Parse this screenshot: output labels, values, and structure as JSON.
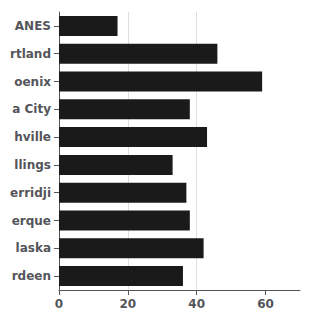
{
  "chart_data": {
    "type": "bar",
    "orientation": "horizontal",
    "categories": [
      "ANES",
      "rtland",
      "oenix",
      "a City",
      "hville",
      "llings",
      "erridji",
      "erque",
      "laska",
      "rdeen"
    ],
    "values": [
      17,
      46,
      59,
      38,
      43,
      33,
      37,
      38,
      42,
      36
    ],
    "color": "#1a1a1a",
    "xlim": [
      0,
      70
    ],
    "xticks": [
      0,
      20,
      40,
      60
    ],
    "grid": true
  }
}
